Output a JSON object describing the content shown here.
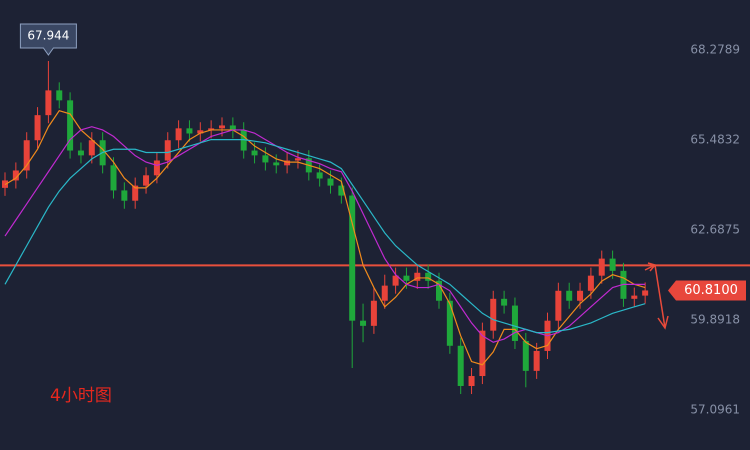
{
  "chart_data": {
    "type": "candlestick",
    "annotation": "4小时图",
    "ylim": [
      55.85,
      69.84
    ],
    "yticks": [
      68.2789,
      65.4832,
      62.6875,
      59.8918,
      57.0961
    ],
    "up_color": "#e8433a",
    "down_color": "#1fa83b",
    "hline": 61.59,
    "hline_color": "#e8503c",
    "last_price": {
      "value": 60.81,
      "label": "60.8100"
    },
    "open": [
      64.0,
      64.23,
      64.54,
      65.48,
      66.26,
      67.03,
      66.72,
      65.16,
      65.01,
      65.48,
      64.7,
      63.92,
      63.6,
      64.07,
      64.39,
      64.85,
      65.48,
      65.85,
      65.69,
      65.79,
      65.85,
      65.94,
      65.79,
      65.16,
      65.01,
      64.79,
      64.7,
      64.85,
      64.92,
      64.48,
      64.29,
      64.07,
      63.76,
      59.87,
      59.71,
      60.49,
      60.96,
      61.27,
      61.11,
      61.36,
      61.11,
      60.49,
      59.09,
      57.84,
      58.15,
      59.56,
      60.55,
      60.34,
      59.24,
      58.31,
      58.93,
      59.87,
      60.8,
      60.49,
      60.8,
      61.27,
      61.8,
      61.42,
      60.55,
      60.65
    ],
    "high": [
      64.48,
      64.79,
      65.73,
      66.51,
      67.944,
      67.28,
      66.97,
      65.41,
      65.73,
      65.73,
      64.95,
      64.17,
      64.32,
      64.64,
      65.1,
      65.73,
      66.1,
      66.1,
      66.04,
      66.1,
      66.19,
      66.19,
      66.04,
      65.41,
      65.26,
      65.04,
      65.1,
      65.17,
      65.17,
      64.73,
      64.54,
      64.32,
      64.01,
      60.4,
      60.9,
      61.3,
      61.52,
      61.52,
      61.61,
      61.61,
      61.36,
      60.74,
      59.34,
      58.4,
      59.81,
      60.8,
      60.8,
      60.59,
      59.49,
      59.18,
      60.12,
      61.05,
      61.05,
      61.05,
      61.52,
      62.05,
      62.05,
      61.67,
      60.9,
      61.06
    ],
    "low": [
      63.75,
      63.98,
      64.29,
      65.23,
      66.01,
      66.47,
      64.91,
      64.76,
      64.76,
      64.45,
      63.67,
      63.35,
      63.35,
      63.82,
      64.14,
      64.6,
      65.23,
      65.44,
      65.44,
      65.54,
      65.6,
      65.54,
      64.91,
      64.76,
      64.54,
      64.45,
      64.45,
      64.6,
      64.23,
      64.04,
      63.82,
      63.51,
      58.4,
      59.2,
      59.46,
      60.24,
      60.71,
      60.86,
      60.86,
      60.86,
      60.24,
      58.84,
      57.59,
      57.59,
      57.9,
      59.31,
      60.09,
      58.99,
      57.8,
      58.06,
      58.68,
      59.62,
      60.24,
      60.24,
      60.55,
      61.02,
      61.17,
      60.3,
      60.3,
      60.4
    ],
    "close": [
      64.23,
      64.54,
      65.48,
      66.26,
      67.03,
      66.72,
      65.16,
      65.01,
      65.48,
      64.7,
      63.92,
      63.6,
      64.07,
      64.39,
      64.85,
      65.48,
      65.85,
      65.69,
      65.79,
      65.85,
      65.94,
      65.79,
      65.16,
      65.01,
      64.79,
      64.7,
      64.85,
      64.92,
      64.48,
      64.29,
      64.07,
      63.76,
      59.87,
      59.71,
      60.49,
      60.96,
      61.27,
      61.11,
      61.36,
      61.11,
      60.49,
      59.09,
      57.84,
      58.15,
      59.56,
      60.55,
      60.34,
      59.24,
      58.31,
      58.93,
      59.87,
      60.8,
      60.49,
      60.8,
      61.27,
      61.8,
      61.42,
      60.55,
      60.65,
      60.81
    ],
    "series": [
      {
        "color": "#f08a1c",
        "values": [
          64.1,
          64.3,
          64.7,
          65.2,
          65.9,
          66.4,
          66.3,
          65.8,
          65.5,
          65.2,
          64.8,
          64.3,
          64.0,
          64.0,
          64.3,
          64.7,
          65.1,
          65.5,
          65.7,
          65.8,
          65.8,
          65.8,
          65.6,
          65.3,
          65.1,
          64.9,
          64.8,
          64.8,
          64.7,
          64.6,
          64.4,
          64.2,
          62.9,
          61.6,
          60.9,
          60.3,
          60.6,
          61.0,
          61.2,
          61.2,
          61.0,
          60.4,
          59.4,
          58.6,
          58.5,
          58.9,
          59.6,
          59.6,
          59.2,
          59.0,
          59.1,
          59.6,
          60.0,
          60.4,
          60.7,
          61.1,
          61.3,
          61.2,
          61.0,
          60.9
        ]
      },
      {
        "color": "#c02ad0",
        "values": [
          62.5,
          63.0,
          63.5,
          64.0,
          64.5,
          65.0,
          65.5,
          65.8,
          65.9,
          65.8,
          65.6,
          65.3,
          65.0,
          64.8,
          64.7,
          64.8,
          65.0,
          65.2,
          65.4,
          65.6,
          65.7,
          65.8,
          65.8,
          65.7,
          65.5,
          65.3,
          65.1,
          64.95,
          64.85,
          64.75,
          64.6,
          64.5,
          63.9,
          63.2,
          62.5,
          61.8,
          61.3,
          61.0,
          60.9,
          60.9,
          61.0,
          60.8,
          60.3,
          59.8,
          59.4,
          59.2,
          59.3,
          59.5,
          59.6,
          59.5,
          59.4,
          59.5,
          59.7,
          60.0,
          60.3,
          60.6,
          60.9,
          61.0,
          61.0,
          61.0
        ]
      },
      {
        "color": "#2ab8c8",
        "values": [
          61.0,
          61.6,
          62.2,
          62.8,
          63.4,
          63.9,
          64.3,
          64.6,
          64.9,
          65.1,
          65.2,
          65.2,
          65.2,
          65.1,
          65.1,
          65.1,
          65.2,
          65.3,
          65.4,
          65.5,
          65.5,
          65.5,
          65.5,
          65.45,
          65.4,
          65.3,
          65.2,
          65.1,
          65.0,
          64.9,
          64.8,
          64.6,
          64.1,
          63.6,
          63.1,
          62.6,
          62.2,
          61.9,
          61.6,
          61.4,
          61.2,
          61.0,
          60.7,
          60.4,
          60.1,
          59.9,
          59.8,
          59.7,
          59.6,
          59.5,
          59.5,
          59.55,
          59.6,
          59.7,
          59.8,
          59.95,
          60.1,
          60.2,
          60.3,
          60.4
        ]
      }
    ]
  }
}
